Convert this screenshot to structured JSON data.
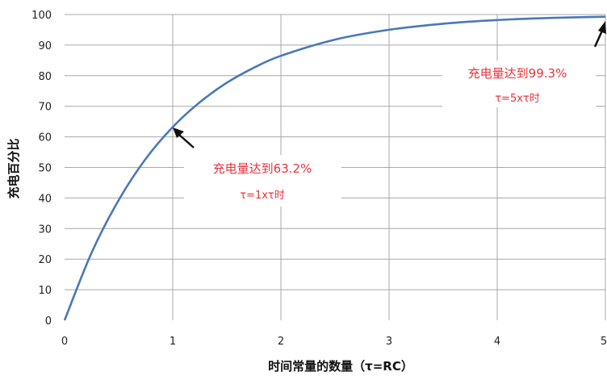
{
  "colors": {
    "curve": "#4a78b8",
    "grid": "#a8a8a8",
    "annotation": "#e8323c",
    "arrow": "#111111"
  },
  "chart_data": {
    "type": "line",
    "title": "",
    "xlabel": "时间常量的数量（τ=RC）",
    "ylabel": "充电百分比",
    "xlim": [
      0,
      5
    ],
    "ylim": [
      0,
      100
    ],
    "x_ticks": [
      "0",
      "1",
      "2",
      "3",
      "4",
      "5"
    ],
    "y_ticks": [
      "0",
      "10",
      "20",
      "30",
      "40",
      "50",
      "60",
      "70",
      "80",
      "90",
      "100"
    ],
    "grid": "horizontal and vertical",
    "series": [
      {
        "x": [
          0,
          0.25,
          0.5,
          0.75,
          1,
          1.25,
          1.5,
          1.75,
          2,
          2.5,
          3,
          3.5,
          4,
          4.5,
          5
        ],
        "values": [
          0,
          22.1,
          39.3,
          52.8,
          63.2,
          71.3,
          77.7,
          82.6,
          86.5,
          91.8,
          95.0,
          97.0,
          98.2,
          98.9,
          99.3
        ]
      }
    ],
    "annotations": [
      {
        "line1": "充电量达到63.2%",
        "line2": "τ=1xτ时",
        "x": 1,
        "y": 63.2
      },
      {
        "line1": "充电量达到99.3%",
        "line2": "τ=5xτ时",
        "x": 5,
        "y": 99.3
      }
    ]
  }
}
